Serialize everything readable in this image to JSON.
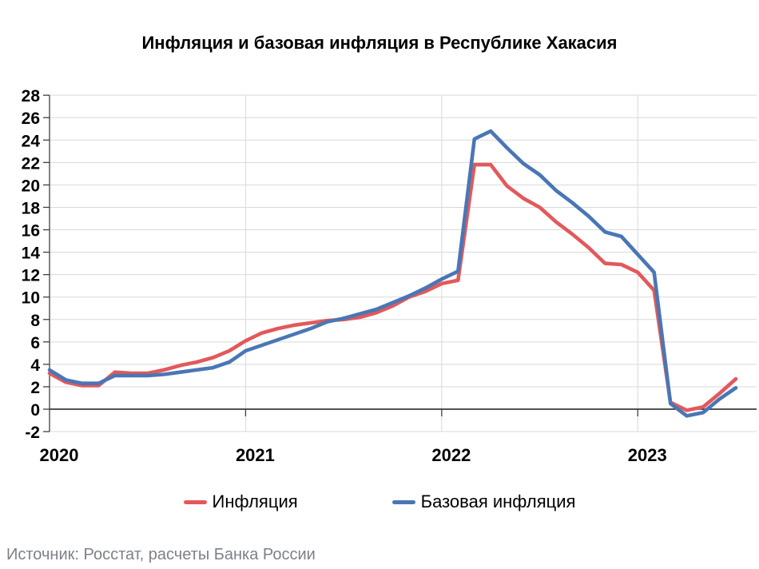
{
  "title": "Инфляция и базовая инфляция в Республике Хакасия",
  "source_note": "Источник: Росстат, расчеты Банка России",
  "legend": [
    {
      "label": "Инфляция",
      "color": "#E2595C"
    },
    {
      "label": "Базовая инфляция",
      "color": "#4A76B5"
    }
  ],
  "chart_data": {
    "type": "line",
    "title": "Инфляция и базовая инфляция в Республике Хакасия",
    "x": [
      "2020-01",
      "2020-02",
      "2020-03",
      "2020-04",
      "2020-05",
      "2020-06",
      "2020-07",
      "2020-08",
      "2020-09",
      "2020-10",
      "2020-11",
      "2020-12",
      "2021-01",
      "2021-02",
      "2021-03",
      "2021-04",
      "2021-05",
      "2021-06",
      "2021-07",
      "2021-08",
      "2021-09",
      "2021-10",
      "2021-11",
      "2021-12",
      "2022-01",
      "2022-02",
      "2022-03",
      "2022-04",
      "2022-05",
      "2022-06",
      "2022-07",
      "2022-08",
      "2022-09",
      "2022-10",
      "2022-11",
      "2022-12",
      "2023-01",
      "2023-02",
      "2023-03",
      "2023-04",
      "2023-05",
      "2023-06",
      "2023-07"
    ],
    "x_axis_tick_labels": [
      "2020",
      "2021",
      "2022",
      "2023"
    ],
    "series": [
      {
        "name": "Инфляция",
        "color": "#E2595C",
        "values": [
          3.2,
          2.4,
          2.1,
          2.1,
          3.3,
          3.2,
          3.2,
          3.5,
          3.9,
          4.2,
          4.6,
          5.2,
          6.1,
          6.8,
          7.2,
          7.5,
          7.7,
          7.9,
          8.0,
          8.2,
          8.6,
          9.2,
          10.0,
          10.5,
          11.2,
          11.5,
          21.8,
          21.8,
          19.9,
          18.8,
          18.0,
          16.7,
          15.6,
          14.4,
          13.0,
          12.9,
          12.2,
          10.6,
          0.6,
          -0.1,
          0.2,
          1.4,
          2.7
        ]
      },
      {
        "name": "Базовая инфляция",
        "color": "#4A76B5",
        "values": [
          3.5,
          2.6,
          2.3,
          2.3,
          3.0,
          3.0,
          3.0,
          3.1,
          3.3,
          3.5,
          3.7,
          4.2,
          5.2,
          5.7,
          6.2,
          6.7,
          7.2,
          7.8,
          8.1,
          8.5,
          8.9,
          9.5,
          10.1,
          10.8,
          11.6,
          12.3,
          24.1,
          24.8,
          23.3,
          21.9,
          20.9,
          19.5,
          18.4,
          17.2,
          15.8,
          15.4,
          13.8,
          12.2,
          0.5,
          -0.6,
          -0.3,
          0.9,
          1.9
        ]
      }
    ],
    "ylim": [
      -2,
      28
    ],
    "y_tick_step": 2,
    "grid": true,
    "legend_position": "bottom"
  }
}
